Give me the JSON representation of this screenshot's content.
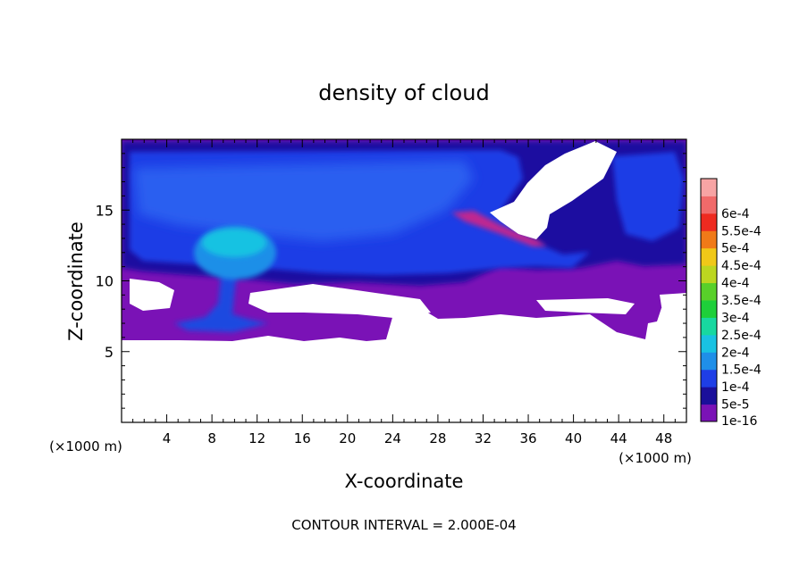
{
  "chart_data": {
    "type": "heatmap",
    "title": "density of cloud",
    "xlabel": "X-coordinate",
    "ylabel": "Z-coordinate",
    "x_unit_label": "(×1000 m)",
    "z_unit_label": "(×1000 m)",
    "footer": "CONTOUR INTERVAL = 2.000E-04",
    "xlim": [
      0,
      50
    ],
    "ylim": [
      0,
      20
    ],
    "x_ticks": [
      "4",
      "8",
      "12",
      "16",
      "20",
      "24",
      "28",
      "32",
      "36",
      "40",
      "44",
      "48"
    ],
    "y_ticks": [
      "5",
      "10",
      "15"
    ],
    "colorbar": {
      "labels": [
        "1e-16",
        "5e-5",
        "1e-4",
        "1.5e-4",
        "2e-4",
        "2.5e-4",
        "3e-4",
        "3.5e-4",
        "4e-4",
        "4.5e-4",
        "5e-4",
        "5.5e-4",
        "6e-4"
      ],
      "colors": [
        "#7a12b6",
        "#1a0f9a",
        "#1e3ee6",
        "#1f8fe8",
        "#19c2e2",
        "#18d8a0",
        "#1ecf3a",
        "#58d02a",
        "#bcd620",
        "#f0c818",
        "#f07a18",
        "#ee2a20",
        "#f06a6a",
        "#f7a4a4"
      ]
    },
    "features": [
      {
        "name": "upper cloud layer",
        "x_range": [
          0,
          50
        ],
        "z_range": [
          10.5,
          19.5
        ],
        "density": "5e-5 to 1e-4"
      },
      {
        "name": "convective plume head",
        "x_center": 10,
        "z_center": 12.8,
        "density": "1.5e-4 to 2e-4"
      },
      {
        "name": "plume stem",
        "x_center": 9,
        "z_range": [
          7,
          11
        ],
        "density": "1e-4"
      },
      {
        "name": "low cloud fragments",
        "x_range": [
          0,
          50
        ],
        "z_range": [
          5.5,
          10
        ],
        "density": "1e-16"
      },
      {
        "name": "cloud-free region",
        "x_range": [
          0,
          50
        ],
        "z_range": [
          0,
          5.5
        ],
        "density": "0"
      },
      {
        "name": "cloud-free gap upper right",
        "x_range": [
          33,
          42
        ],
        "z_range": [
          12.5,
          19
        ]
      }
    ]
  }
}
